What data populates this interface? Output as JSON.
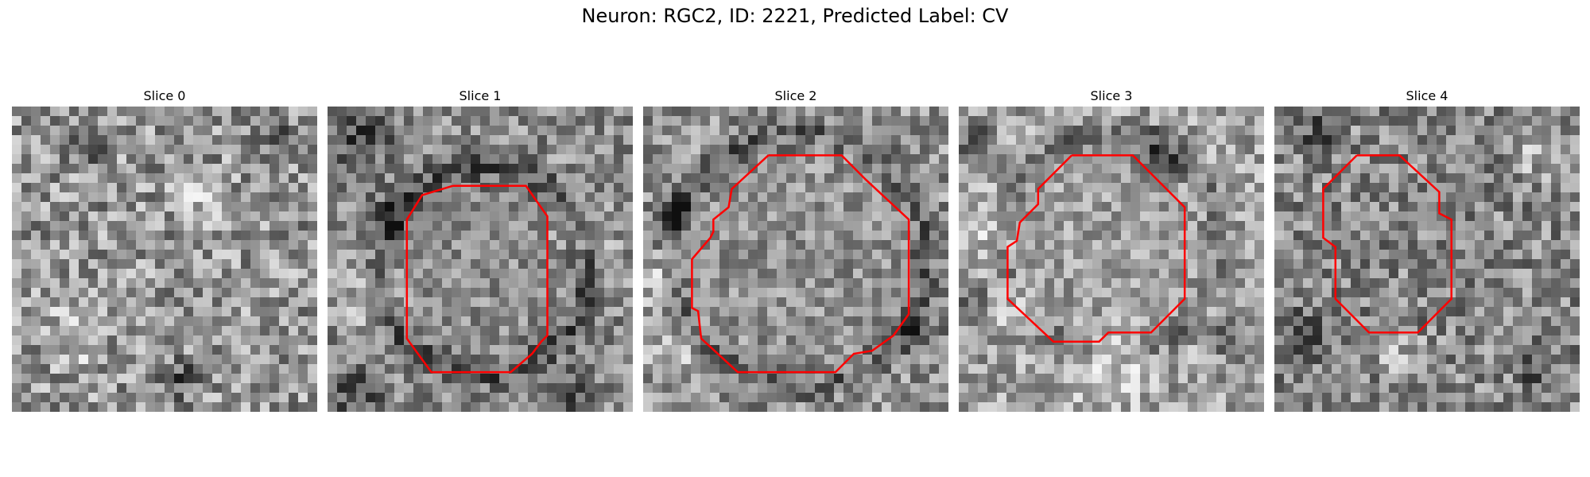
{
  "figure": {
    "title": "Neuron: RGC2, ID: 2221, Predicted Label: CV"
  },
  "panels": [
    {
      "title": "Slice 0",
      "has_outline": false
    },
    {
      "title": "Slice 1",
      "has_outline": true
    },
    {
      "title": "Slice 2",
      "has_outline": true
    },
    {
      "title": "Slice 3",
      "has_outline": true
    },
    {
      "title": "Slice 4",
      "has_outline": true
    }
  ],
  "colors": {
    "outline": "#ff0000",
    "background": "#ffffff"
  }
}
